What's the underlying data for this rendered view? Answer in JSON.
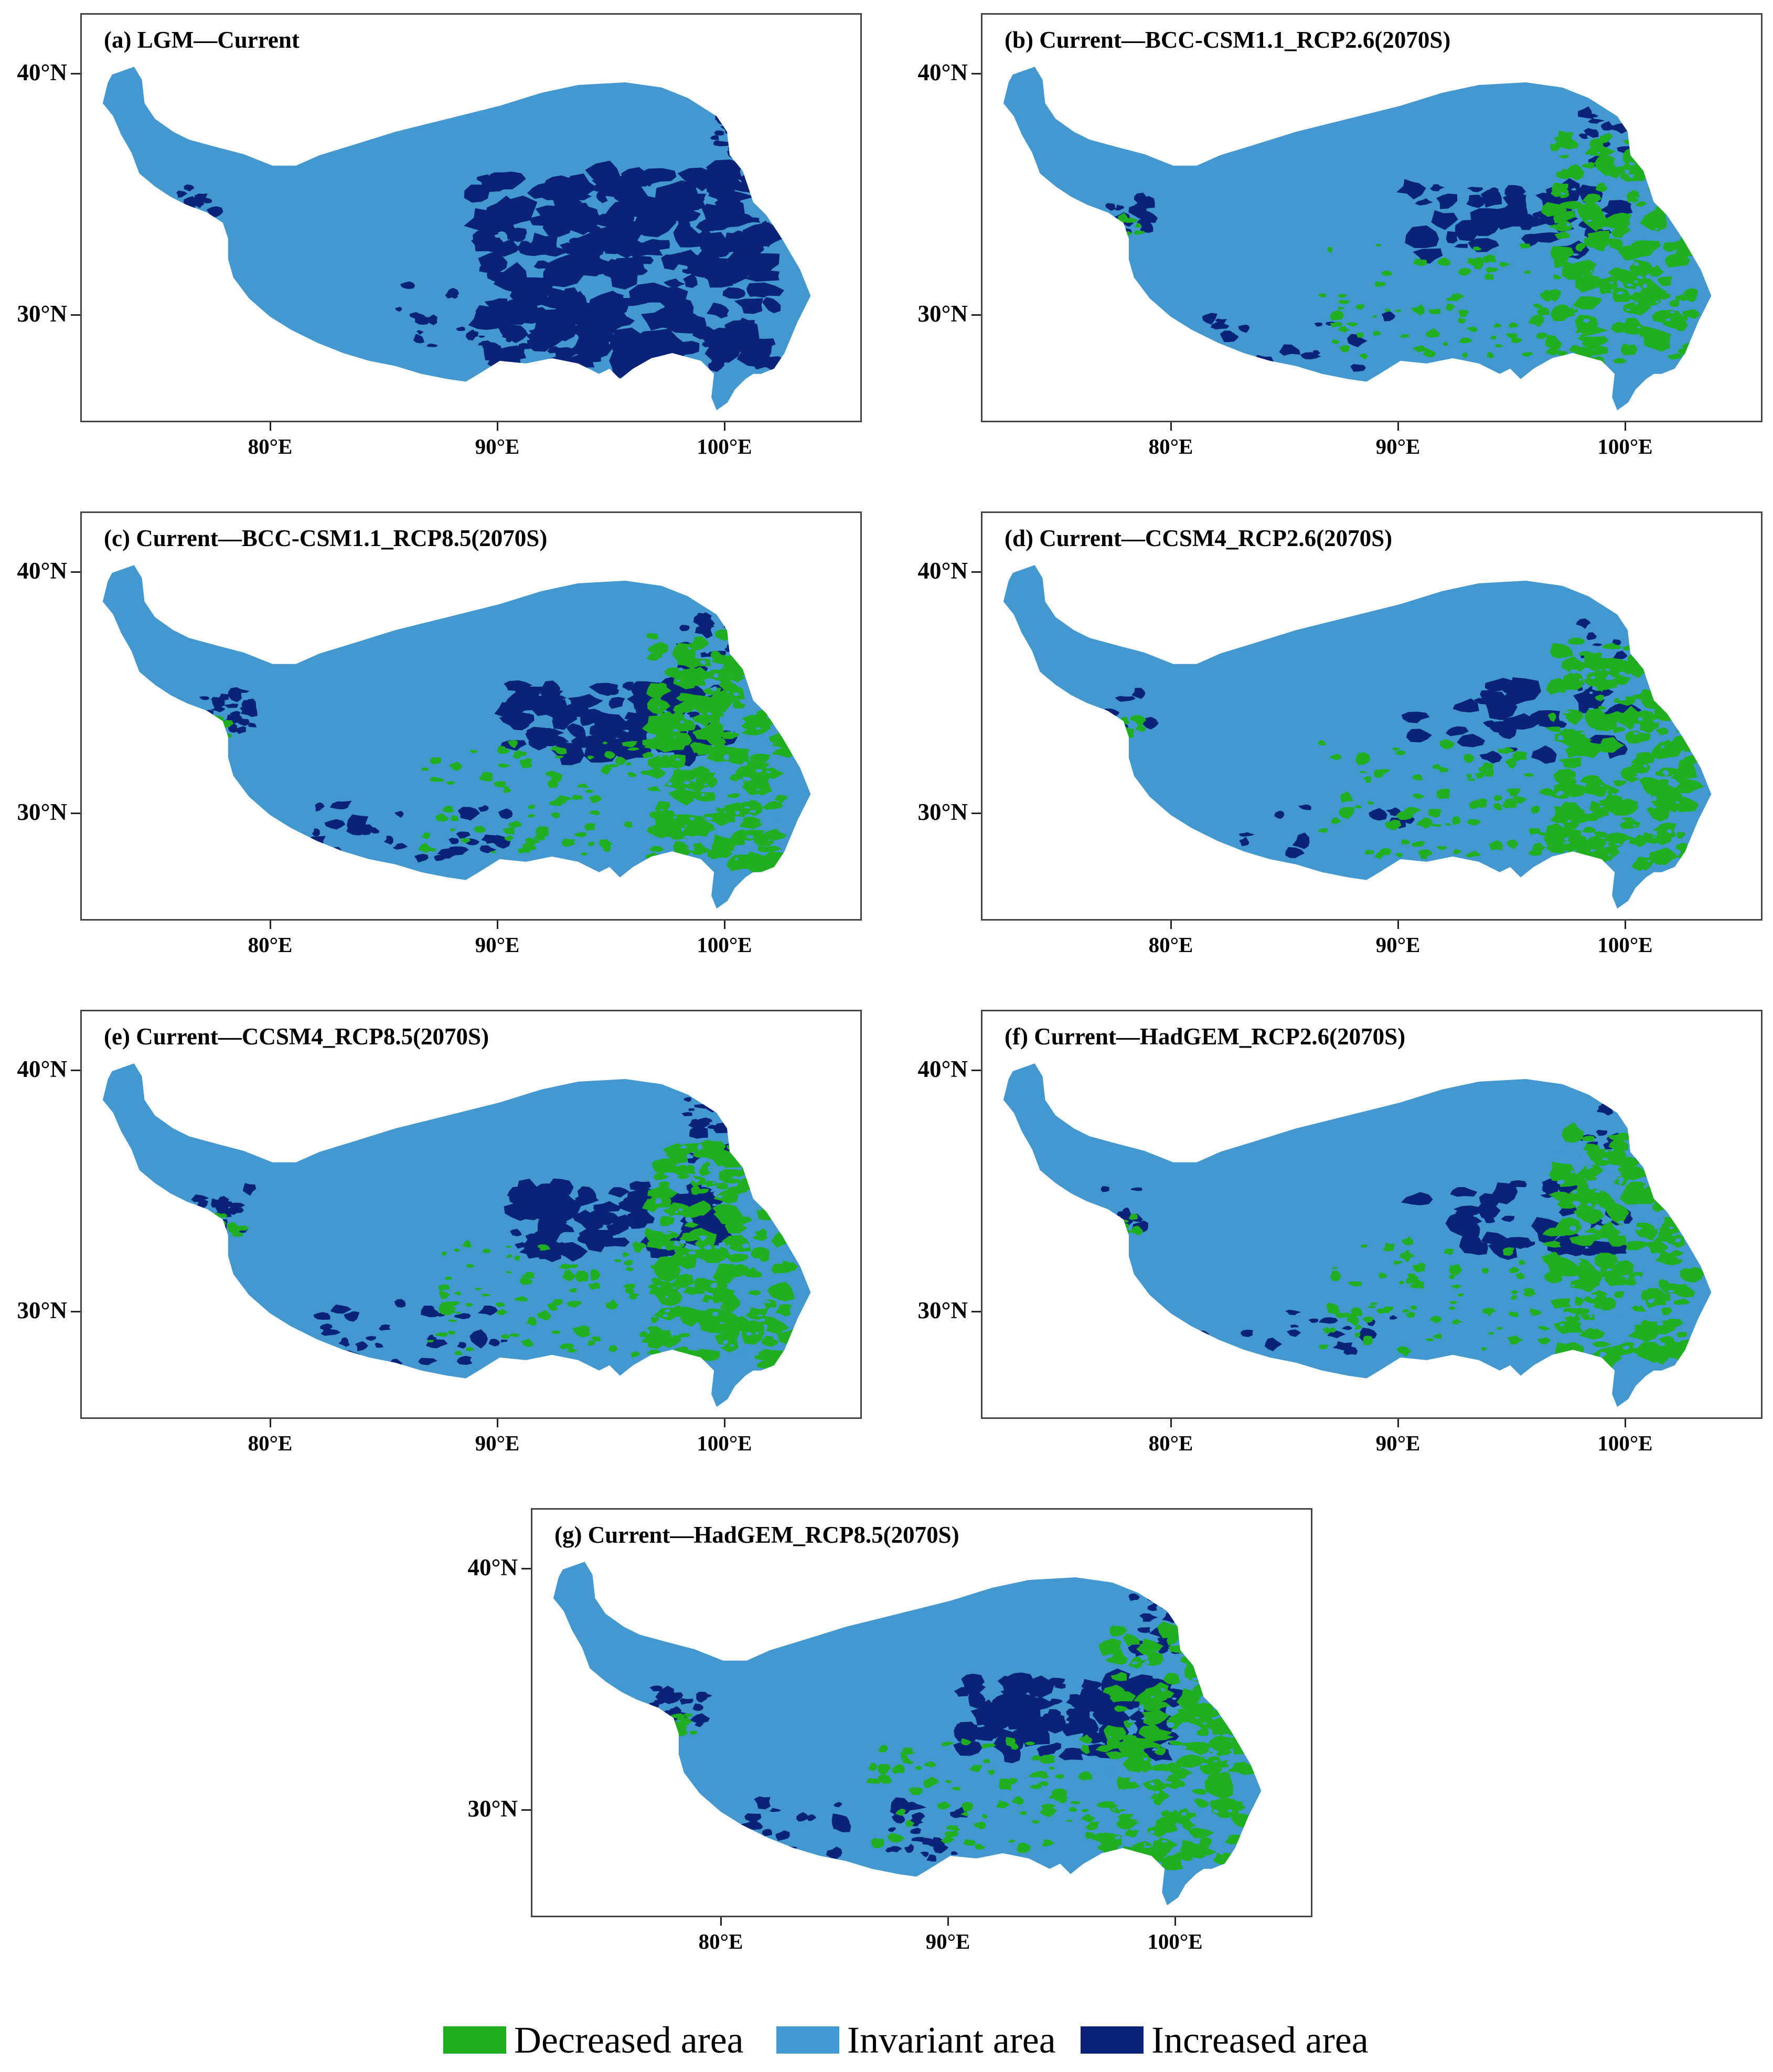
{
  "colors": {
    "decreased": "#1fae1f",
    "invariant": "#4298cf",
    "increased": "#0a2378"
  },
  "axis": {
    "lat_labels": [
      "40°N",
      "30°N"
    ],
    "lon_labels": [
      "80°E",
      "90°E",
      "100°E"
    ]
  },
  "panels": [
    {
      "id": "a",
      "title": "(a) LGM—Current",
      "decreased_level": 0.0,
      "increased_level": 0.95
    },
    {
      "id": "b",
      "title": "(b) Current—BCC-CSM1.1_RCP2.6(2070S)",
      "decreased_level": 0.75,
      "increased_level": 0.35
    },
    {
      "id": "c",
      "title": "(c) Current—BCC-CSM1.1_RCP8.5(2070S)",
      "decreased_level": 0.85,
      "increased_level": 0.7
    },
    {
      "id": "d",
      "title": "(d) Current—CCSM4_RCP2.6(2070S)",
      "decreased_level": 0.8,
      "increased_level": 0.25
    },
    {
      "id": "e",
      "title": "(e) Current—CCSM4_RCP8.5(2070S)",
      "decreased_level": 0.85,
      "increased_level": 0.65
    },
    {
      "id": "f",
      "title": "(f) Current—HadGEM_RCP2.6(2070S)",
      "decreased_level": 0.8,
      "increased_level": 0.35
    },
    {
      "id": "g",
      "title": "(g) Current—HadGEM_RCP8.5(2070S)",
      "decreased_level": 0.85,
      "increased_level": 0.85
    }
  ],
  "legend": [
    {
      "key": "decreased",
      "label": "Decreased area"
    },
    {
      "key": "invariant",
      "label": "Invariant area"
    },
    {
      "key": "increased",
      "label": "Increased area"
    }
  ]
}
